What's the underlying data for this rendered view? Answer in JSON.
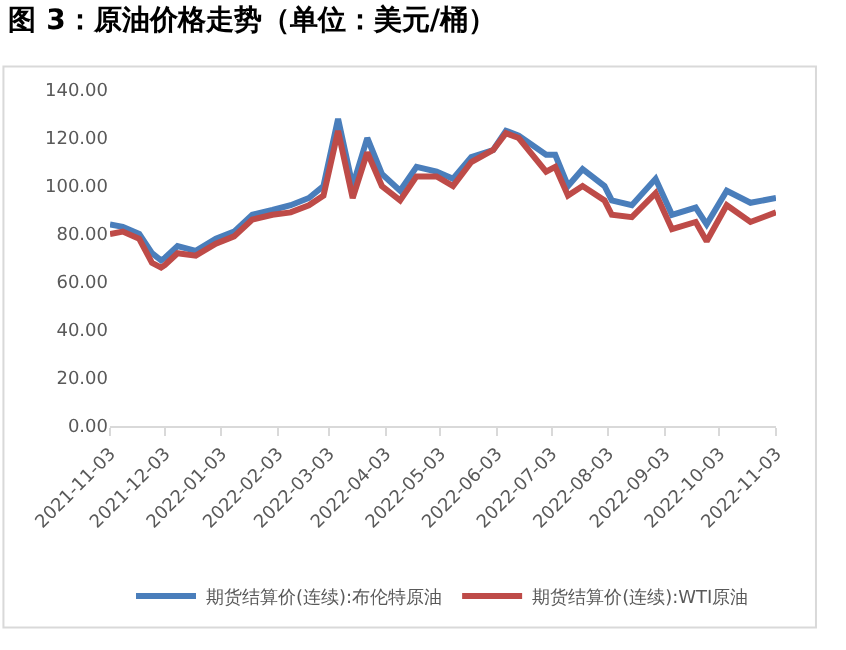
{
  "chart_data": {
    "type": "line",
    "title": "图 3：原油价格走势（单位：美元/桶）",
    "x": [
      "2021-11-03",
      "2021-11-10",
      "2021-11-19",
      "2021-11-26",
      "2021-12-01",
      "2021-12-03",
      "2021-12-10",
      "2021-12-20",
      "2021-12-31",
      "2022-01-10",
      "2022-01-20",
      "2022-01-31",
      "2022-02-10",
      "2022-02-20",
      "2022-02-28",
      "2022-03-08",
      "2022-03-16",
      "2022-03-24",
      "2022-04-01",
      "2022-04-11",
      "2022-04-20",
      "2022-05-01",
      "2022-05-10",
      "2022-05-20",
      "2022-06-01",
      "2022-06-08",
      "2022-06-15",
      "2022-06-30",
      "2022-07-05",
      "2022-07-12",
      "2022-07-20",
      "2022-08-01",
      "2022-08-05",
      "2022-08-16",
      "2022-08-29",
      "2022-09-07",
      "2022-09-20",
      "2022-09-26",
      "2022-10-07",
      "2022-10-20",
      "2022-11-03"
    ],
    "series": [
      {
        "name": "期货结算价(连续):布伦特原油",
        "color": "#4a7ebb",
        "values": [
          84,
          83,
          80,
          72,
          69,
          70,
          75,
          73,
          78,
          81,
          88,
          90,
          92,
          95,
          100,
          128,
          100,
          120,
          105,
          98,
          108,
          106,
          103,
          112,
          115,
          123,
          121,
          113,
          113,
          100,
          107,
          100,
          94,
          92,
          103,
          88,
          91,
          84,
          98,
          93,
          95
        ]
      },
      {
        "name": "期货结算价(连续):WTI原油",
        "color": "#be4b48",
        "values": [
          80,
          81,
          78,
          68,
          66,
          67,
          72,
          71,
          76,
          79,
          86,
          88,
          89,
          92,
          96,
          123,
          95,
          114,
          100,
          94,
          104,
          104,
          100,
          110,
          115,
          122,
          120,
          106,
          108,
          96,
          100,
          94,
          88,
          87,
          97,
          82,
          85,
          77,
          92,
          85,
          89
        ]
      }
    ],
    "ylim": [
      0,
      140
    ],
    "yticks": [
      {
        "value": 0,
        "label": "0.00"
      },
      {
        "value": 20,
        "label": "20.00"
      },
      {
        "value": 40,
        "label": "40.00"
      },
      {
        "value": 60,
        "label": "60.00"
      },
      {
        "value": 80,
        "label": "80.00"
      },
      {
        "value": 100,
        "label": "100.00"
      },
      {
        "value": 120,
        "label": "120.00"
      },
      {
        "value": 140,
        "label": "140.00"
      }
    ],
    "xlim": [
      "2021-11-03",
      "2022-11-03"
    ],
    "xticks": [
      "2021-11-03",
      "2021-12-03",
      "2022-01-03",
      "2022-02-03",
      "2022-03-03",
      "2022-04-03",
      "2022-05-03",
      "2022-06-03",
      "2022-07-03",
      "2022-08-03",
      "2022-09-03",
      "2022-10-03",
      "2022-11-03"
    ],
    "grid": false,
    "legend": "bottom",
    "marker": "none",
    "line_style": "solid"
  }
}
